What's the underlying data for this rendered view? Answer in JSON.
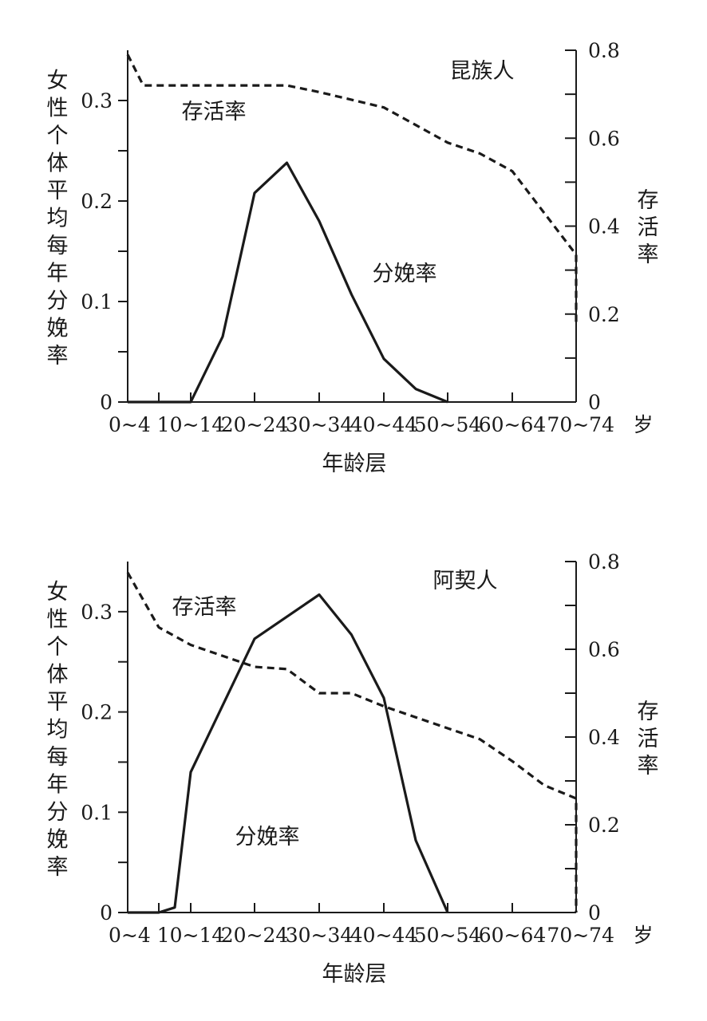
{
  "chart_data": [
    {
      "type": "line",
      "panel_label": "昆族人",
      "categories": [
        "0~4",
        "",
        "10~14",
        "20~24",
        "30~34",
        "40~44",
        "50~54",
        "60~64",
        "70~74"
      ],
      "x_unit": "岁",
      "xlabel": "年龄层",
      "ylabel_left": "女性个体平均每年分娩率",
      "ylabel_right": "存活率",
      "ylim_left": [
        0,
        0.35
      ],
      "ylim_right": [
        0,
        0.8
      ],
      "yticks_left": [
        "0",
        "0.1",
        "0.2",
        "0.3"
      ],
      "yticks_right": [
        "0",
        "0.2",
        "0.4",
        "0.6",
        "0.8"
      ],
      "series": [
        {
          "name": "分娩率",
          "axis": "left",
          "style": "solid",
          "points": [
            [
              0,
              0
            ],
            [
              1,
              0
            ],
            [
              2,
              0
            ],
            [
              2.5,
              0.065
            ],
            [
              3,
              0.208
            ],
            [
              3.5,
              0.238
            ],
            [
              4,
              0.18
            ],
            [
              4.5,
              0.107
            ],
            [
              5,
              0.043
            ],
            [
              5.5,
              0.013
            ],
            [
              6,
              0
            ]
          ]
        },
        {
          "name": "存活率",
          "axis": "right",
          "style": "dashed",
          "points": [
            [
              0,
              0.79
            ],
            [
              0.5,
              0.72
            ],
            [
              1,
              0.72
            ],
            [
              2,
              0.72
            ],
            [
              3,
              0.72
            ],
            [
              3.5,
              0.72
            ],
            [
              4,
              0.705
            ],
            [
              5,
              0.67
            ],
            [
              5.5,
              0.63
            ],
            [
              6,
              0.59
            ],
            [
              6.5,
              0.565
            ],
            [
              7,
              0.525
            ],
            [
              7.5,
              0.43
            ],
            [
              8,
              0.335
            ],
            [
              8.5,
              0.18
            ]
          ]
        }
      ]
    },
    {
      "type": "line",
      "panel_label": "阿契人",
      "categories": [
        "0~4",
        "",
        "10~14",
        "20~24",
        "30~34",
        "40~44",
        "50~54",
        "60~64",
        "70~74"
      ],
      "x_unit": "岁",
      "xlabel": "年龄层",
      "ylabel_left": "女性个体平均每年分娩率",
      "ylabel_right": "存活率",
      "ylim_left": [
        0,
        0.35
      ],
      "ylim_right": [
        0,
        0.8
      ],
      "yticks_left": [
        "0",
        "0.1",
        "0.2",
        "0.3"
      ],
      "yticks_right": [
        "0",
        "0.2",
        "0.4",
        "0.6",
        "0.8"
      ],
      "series": [
        {
          "name": "分娩率",
          "axis": "left",
          "style": "solid",
          "points": [
            [
              0,
              0
            ],
            [
              1,
              0
            ],
            [
              1.5,
              0.005
            ],
            [
              2,
              0.14
            ],
            [
              3,
              0.273
            ],
            [
              4,
              0.317
            ],
            [
              4.5,
              0.277
            ],
            [
              5,
              0.214
            ],
            [
              5.5,
              0.072
            ],
            [
              6,
              0
            ]
          ]
        },
        {
          "name": "存活率",
          "axis": "right",
          "style": "dashed",
          "points": [
            [
              0,
              0.775
            ],
            [
              1,
              0.65
            ],
            [
              2,
              0.61
            ],
            [
              3,
              0.56
            ],
            [
              3.5,
              0.555
            ],
            [
              4,
              0.5
            ],
            [
              4.5,
              0.5
            ],
            [
              5,
              0.47
            ],
            [
              6,
              0.42
            ],
            [
              6.5,
              0.395
            ],
            [
              7,
              0.345
            ],
            [
              7.5,
              0.29
            ],
            [
              8,
              0.26
            ],
            [
              8.5,
              0.17
            ],
            [
              9,
              0.07
            ],
            [
              9.5,
              0
            ]
          ]
        }
      ]
    }
  ]
}
